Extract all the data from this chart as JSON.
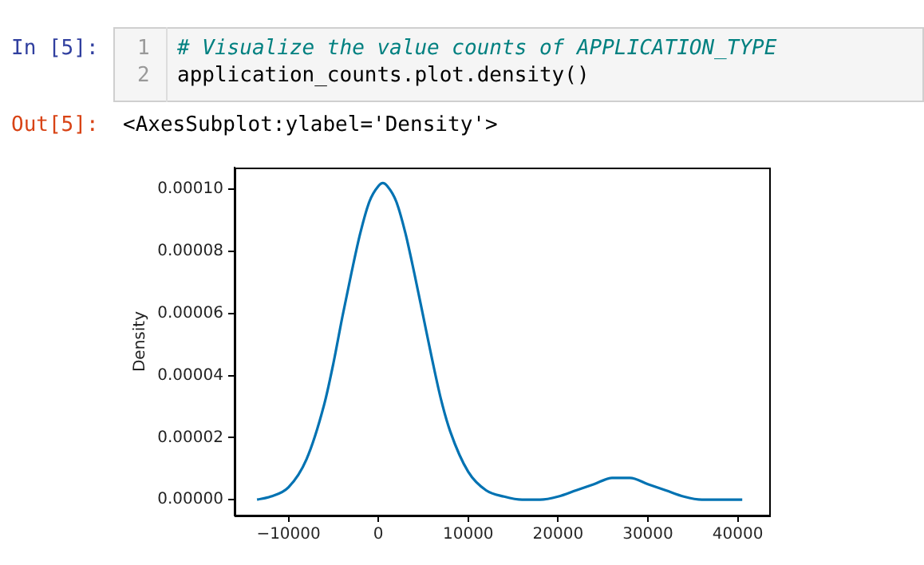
{
  "chart_data": {
    "type": "line",
    "ylabel": "Density",
    "annotations": [
      "In [5]:",
      "1",
      "2",
      "# Visualize the value counts of APPLICATION_TYPE",
      "application_counts.plot.density()",
      "Out[5]:",
      "<AxesSubplot:ylabel='Density'>"
    ],
    "x": [
      -13500,
      -12000,
      -10000,
      -8000,
      -6000,
      -5000,
      -4000,
      -3000,
      -2000,
      -1000,
      0,
      500,
      1000,
      2000,
      3000,
      4000,
      5000,
      6000,
      7000,
      8000,
      10000,
      12000,
      14000,
      16000,
      18000,
      20000,
      22000,
      24000,
      26000,
      27000,
      28000,
      30000,
      32000,
      34000,
      36000,
      38000,
      40500
    ],
    "series": [
      {
        "color": "#0072b2",
        "values": [
          0.0,
          1e-06,
          4e-06,
          1.3e-05,
          3.1e-05,
          4.4e-05,
          5.9e-05,
          7.3e-05,
          8.6e-05,
          9.6e-05,
          0.000101,
          0.000102,
          0.000101,
          9.6e-05,
          8.6e-05,
          7.3e-05,
          5.9e-05,
          4.5e-05,
          3.2e-05,
          2.2e-05,
          9e-06,
          3e-06,
          1e-06,
          0.0,
          0.0,
          1e-06,
          3e-06,
          5e-06,
          7e-06,
          7e-06,
          7e-06,
          5e-06,
          3e-06,
          1e-06,
          0.0,
          0.0,
          0.0
        ]
      }
    ],
    "xlim": [
      -16000,
      43500
    ],
    "xticks": [
      -10000,
      0,
      10000,
      20000,
      30000,
      40000
    ],
    "ylim": [
      -5.1e-06,
      0.000107
    ],
    "yticks": [
      {
        "value": 0,
        "label": "0.00000"
      },
      {
        "value": 2e-05,
        "label": "0.00002"
      },
      {
        "value": 4e-05,
        "label": "0.00004"
      },
      {
        "value": 6e-05,
        "label": "0.00006"
      },
      {
        "value": 8e-05,
        "label": "0.00008"
      },
      {
        "value": 0.0001,
        "label": "0.00010"
      }
    ],
    "grid": false,
    "legend": false,
    "marker": "none",
    "line_style": "solid"
  }
}
